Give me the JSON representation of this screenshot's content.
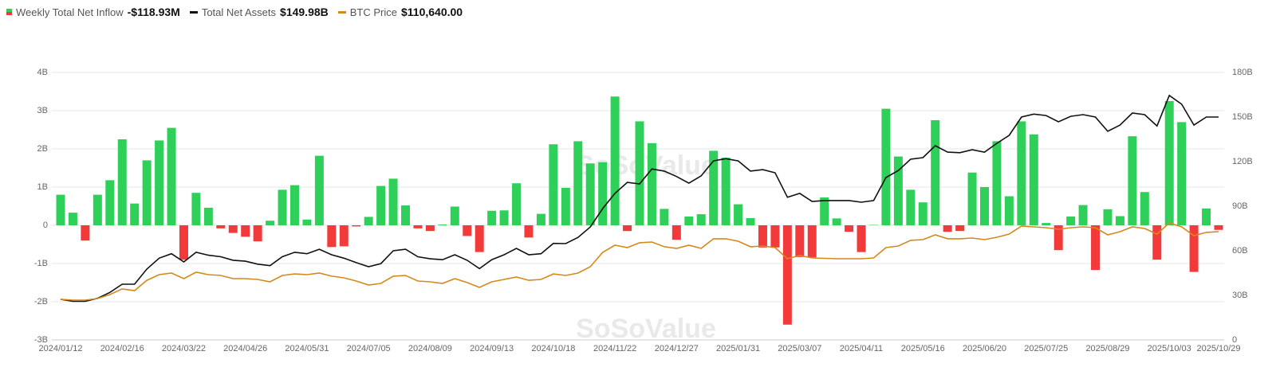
{
  "chart_data": {
    "type": "combo",
    "watermark": "SoSoValue",
    "categories": [
      "2024/01/12",
      null,
      null,
      null,
      null,
      "2024/02/16",
      null,
      null,
      null,
      null,
      "2024/03/22",
      null,
      null,
      null,
      null,
      "2024/04/26",
      null,
      null,
      null,
      null,
      "2024/05/31",
      null,
      null,
      null,
      null,
      "2024/07/05",
      null,
      null,
      null,
      null,
      "2024/08/09",
      null,
      null,
      null,
      null,
      "2024/09/13",
      null,
      null,
      null,
      null,
      "2024/10/18",
      null,
      null,
      null,
      null,
      "2024/11/22",
      null,
      null,
      null,
      null,
      "2024/12/27",
      null,
      null,
      null,
      null,
      "2025/01/31",
      null,
      null,
      null,
      null,
      "2025/03/07",
      null,
      null,
      null,
      null,
      "2025/04/11",
      null,
      null,
      null,
      null,
      "2025/05/16",
      null,
      null,
      null,
      null,
      "2025/06/20",
      null,
      null,
      null,
      null,
      "2025/07/25",
      null,
      null,
      null,
      null,
      "2025/08/29",
      null,
      null,
      null,
      null,
      "2025/10/03",
      null,
      null,
      null,
      "2025/10/29"
    ],
    "ylim": [
      -3,
      4
    ],
    "yticks": [
      {
        "value": -3,
        "label": "-3B"
      },
      {
        "value": -2,
        "label": "-2B"
      },
      {
        "value": -1,
        "label": "-1B"
      },
      0,
      {
        "value": 1,
        "label": "1B"
      },
      {
        "value": 2,
        "label": "2B"
      },
      {
        "value": 3,
        "label": "3B"
      },
      {
        "value": 4,
        "label": "4B"
      }
    ],
    "y2lim": [
      0,
      180
    ],
    "y2ticks": [
      0,
      {
        "value": 30,
        "label": "30B"
      },
      {
        "value": 60,
        "label": "60B"
      },
      {
        "value": 90,
        "label": "90B"
      },
      {
        "value": 120,
        "label": "120B"
      },
      {
        "value": 150,
        "label": "150B"
      },
      {
        "value": 180,
        "label": "180B"
      }
    ],
    "y3lim": [
      7000,
      263000
    ],
    "grid": true,
    "series": [
      {
        "name": "Weekly Total Net Inflow",
        "latest": "-$118.93M",
        "type": "bar",
        "color": "#2fd05a",
        "negative_color": "#f23a3a",
        "values": [
          0.8,
          0.33,
          -0.4,
          0.8,
          1.18,
          2.25,
          0.57,
          1.7,
          2.22,
          2.55,
          -0.9,
          0.85,
          0.46,
          -0.08,
          -0.2,
          -0.3,
          -0.42,
          0.12,
          0.93,
          1.05,
          0.15,
          1.82,
          -0.57,
          -0.55,
          -0.03,
          0.22,
          1.03,
          1.22,
          0.52,
          -0.08,
          -0.15,
          0.02,
          0.49,
          -0.28,
          -0.7,
          0.38,
          0.39,
          1.1,
          -0.32,
          0.3,
          2.12,
          0.98,
          2.2,
          1.62,
          1.65,
          3.37,
          -0.15,
          2.72,
          2.15,
          0.43,
          -0.38,
          0.23,
          0.29,
          1.95,
          1.77,
          0.55,
          0.19,
          -0.58,
          -0.58,
          -2.6,
          -0.83,
          -0.84,
          0.73,
          0.18,
          -0.17,
          -0.7,
          0.01,
          3.05,
          1.8,
          0.93,
          0.6,
          2.75,
          -0.17,
          -0.15,
          1.38,
          1.0,
          2.2,
          0.76,
          2.72,
          2.38,
          0.06,
          -0.65,
          0.23,
          0.53,
          -1.17,
          0.42,
          0.24,
          2.33,
          0.87,
          -0.9,
          3.25,
          2.7,
          -1.22,
          0.44,
          -0.12
        ]
      },
      {
        "name": "Total Net Assets",
        "latest": "$149.98B",
        "type": "line",
        "axis": "y2",
        "color": "#111111",
        "values": [
          27.3,
          26,
          26,
          28,
          32,
          37.5,
          37.5,
          47.7,
          55,
          58,
          52.5,
          59,
          57,
          56,
          53.6,
          53,
          51,
          50,
          56,
          59,
          58,
          61,
          57.3,
          55,
          52,
          49.3,
          51.4,
          60,
          61,
          56,
          54.6,
          54,
          57.3,
          53.6,
          48,
          54,
          57.3,
          61.6,
          57.3,
          58,
          65,
          64.8,
          69,
          76,
          88.4,
          98.6,
          106,
          105,
          115,
          113.6,
          110,
          105.5,
          110.4,
          120.5,
          122,
          120.5,
          113.6,
          114.6,
          112.5,
          96,
          98.6,
          93.2,
          93.8,
          93.8,
          93.8,
          92.7,
          93.8,
          109.3,
          114,
          121.6,
          122.7,
          130.7,
          126.4,
          126,
          128,
          126.4,
          132.3,
          137.7,
          150,
          152,
          151,
          146.8,
          150.5,
          151.6,
          150,
          140.4,
          144.6,
          152.7,
          151.6,
          144,
          164.5,
          158.6,
          144.6,
          150,
          150
        ]
      },
      {
        "name": "BTC Price",
        "latest": "$110,640.00",
        "type": "line",
        "axis": "y3",
        "color": "#d4891c",
        "values": [
          45900,
          45100,
          45100,
          46600,
          50400,
          55800,
          54200,
          64100,
          69500,
          71000,
          65700,
          71800,
          69500,
          68700,
          65700,
          65700,
          64900,
          62600,
          68700,
          70200,
          69500,
          71000,
          68000,
          66400,
          63400,
          59600,
          61100,
          68000,
          68700,
          63400,
          62600,
          61100,
          65700,
          61900,
          57300,
          62600,
          64900,
          67200,
          64100,
          64900,
          70200,
          68700,
          71000,
          77100,
          90800,
          97700,
          95400,
          100000,
          100700,
          96200,
          94600,
          97700,
          94600,
          103800,
          103800,
          101500,
          96200,
          96900,
          95400,
          84700,
          87800,
          85500,
          85100,
          84700,
          84700,
          84700,
          85500,
          95400,
          96900,
          102300,
          103000,
          107600,
          103800,
          103800,
          104500,
          103000,
          105300,
          108300,
          116000,
          115200,
          114400,
          112900,
          114400,
          115200,
          114400,
          107600,
          110600,
          115200,
          113700,
          108300,
          119000,
          115200,
          106800,
          109900,
          110640
        ]
      }
    ]
  }
}
